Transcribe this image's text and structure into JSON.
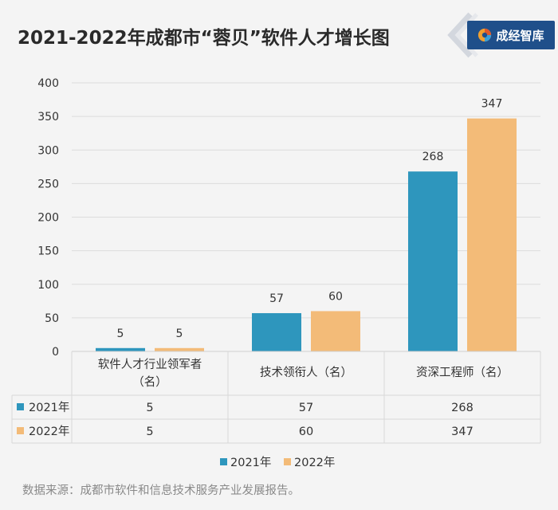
{
  "header": {
    "title": "2021-2022年成都市“蓉贝”软件人才增长图",
    "logo_text": "成经智库"
  },
  "footer": {
    "source": "数据来源：成都市软件和信息技术服务产业发展报告。"
  },
  "colors": {
    "series_2021": "#2e96bd",
    "series_2022": "#f3bb78",
    "logo_bg": "#1f4f8a",
    "grid": "#dcdcdc"
  },
  "chart_data": {
    "type": "bar",
    "title": "2021-2022年成都市“蓉贝”软件人才增长图",
    "categories": [
      [
        "软件人才行业领军者",
        "（名）"
      ],
      [
        "技术领衔人（名）"
      ],
      [
        "资深工程师（名）"
      ]
    ],
    "series": [
      {
        "name": "2021年",
        "values": [
          5,
          57,
          268
        ]
      },
      {
        "name": "2022年",
        "values": [
          5,
          60,
          347
        ]
      }
    ],
    "ylim": [
      0,
      400
    ],
    "yticks": [
      0,
      50,
      100,
      150,
      200,
      250,
      300,
      350,
      400
    ],
    "grid": true,
    "legend": "bottom-center",
    "data_table": true
  }
}
